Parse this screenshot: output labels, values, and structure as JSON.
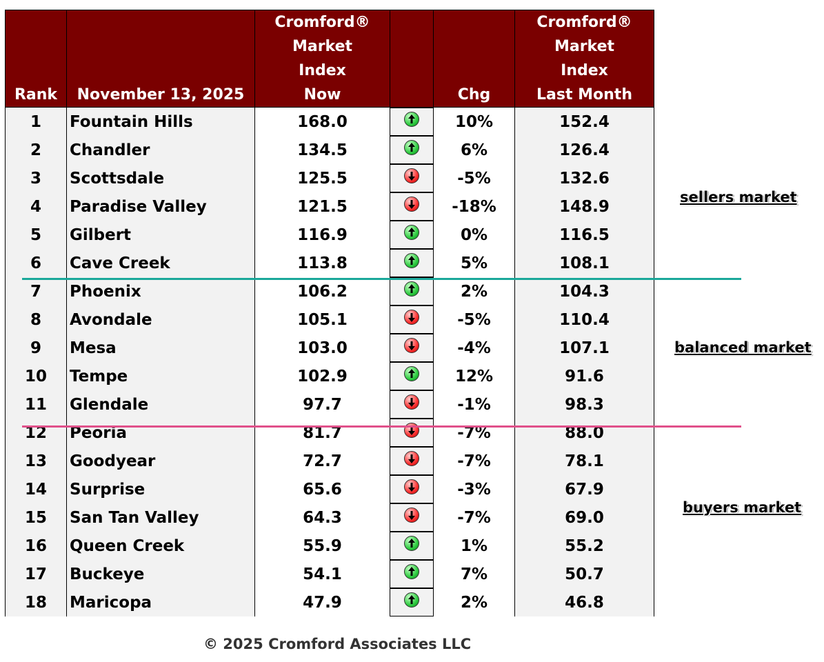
{
  "colors": {
    "header_bg": "#7a0000",
    "divider_sellers": "#1aa89a",
    "divider_buyers": "#e0508a"
  },
  "headers": {
    "rank": "Rank",
    "date": "November 13, 2025",
    "now": [
      "Cromford®",
      "Market",
      "Index",
      "Now"
    ],
    "chg": "Chg",
    "last": [
      "Cromford®",
      "Market",
      "Index",
      "Last Month"
    ]
  },
  "rows": [
    {
      "rank": "1",
      "name": "Fountain Hills",
      "now": "168.0",
      "dir": "up",
      "chg": "10%",
      "last": "152.4"
    },
    {
      "rank": "2",
      "name": "Chandler",
      "now": "134.5",
      "dir": "up",
      "chg": "6%",
      "last": "126.4"
    },
    {
      "rank": "3",
      "name": "Scottsdale",
      "now": "125.5",
      "dir": "down",
      "chg": "-5%",
      "last": "132.6"
    },
    {
      "rank": "4",
      "name": "Paradise Valley",
      "now": "121.5",
      "dir": "down",
      "chg": "-18%",
      "last": "148.9"
    },
    {
      "rank": "5",
      "name": "Gilbert",
      "now": "116.9",
      "dir": "up",
      "chg": "0%",
      "last": "116.5"
    },
    {
      "rank": "6",
      "name": "Cave Creek",
      "now": "113.8",
      "dir": "up",
      "chg": "5%",
      "last": "108.1"
    },
    {
      "rank": "7",
      "name": "Phoenix",
      "now": "106.2",
      "dir": "up",
      "chg": "2%",
      "last": "104.3"
    },
    {
      "rank": "8",
      "name": "Avondale",
      "now": "105.1",
      "dir": "down",
      "chg": "-5%",
      "last": "110.4"
    },
    {
      "rank": "9",
      "name": "Mesa",
      "now": "103.0",
      "dir": "down",
      "chg": "-4%",
      "last": "107.1"
    },
    {
      "rank": "10",
      "name": "Tempe",
      "now": "102.9",
      "dir": "up",
      "chg": "12%",
      "last": "91.6"
    },
    {
      "rank": "11",
      "name": "Glendale",
      "now": "97.7",
      "dir": "down",
      "chg": "-1%",
      "last": "98.3"
    },
    {
      "rank": "12",
      "name": "Peoria",
      "now": "81.7",
      "dir": "down",
      "chg": "-7%",
      "last": "88.0"
    },
    {
      "rank": "13",
      "name": "Goodyear",
      "now": "72.7",
      "dir": "down",
      "chg": "-7%",
      "last": "78.1"
    },
    {
      "rank": "14",
      "name": "Surprise",
      "now": "65.6",
      "dir": "down",
      "chg": "-3%",
      "last": "67.9"
    },
    {
      "rank": "15",
      "name": "San Tan Valley",
      "now": "64.3",
      "dir": "down",
      "chg": "-7%",
      "last": "69.0"
    },
    {
      "rank": "16",
      "name": "Queen Creek",
      "now": "55.9",
      "dir": "up",
      "chg": "1%",
      "last": "55.2"
    },
    {
      "rank": "17",
      "name": "Buckeye",
      "now": "54.1",
      "dir": "up",
      "chg": "7%",
      "last": "50.7"
    },
    {
      "rank": "18",
      "name": "Maricopa",
      "now": "47.9",
      "dir": "up",
      "chg": "2%",
      "last": "46.8"
    }
  ],
  "labels": {
    "sellers": "sellers market",
    "balanced": "balanced market",
    "buyers": "buyers market"
  },
  "copyright": "© 2025 Cromford Associates LLC"
}
